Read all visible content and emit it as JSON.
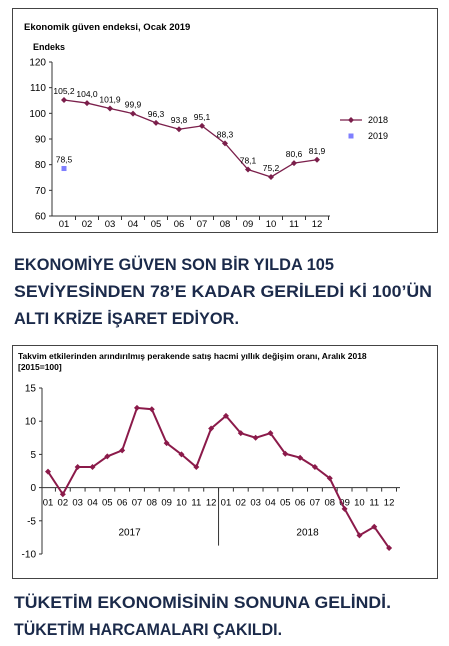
{
  "chart_data": [
    {
      "type": "line",
      "title": "Ekonomik güven endeksi, Ocak 2019",
      "y_label": "Endeks",
      "categories": [
        "01",
        "02",
        "03",
        "04",
        "05",
        "06",
        "07",
        "08",
        "09",
        "10",
        "11",
        "12"
      ],
      "series": [
        {
          "name": "2018",
          "color": "#7b1f4b",
          "marker": "diamond",
          "values": [
            105.2,
            104.0,
            101.9,
            99.9,
            96.3,
            93.8,
            95.1,
            88.3,
            78.1,
            75.2,
            80.6,
            81.9
          ],
          "value_labels": [
            "105,2",
            "104,0",
            "101,9",
            "99,9",
            "96,3",
            "93,8",
            "95,1",
            "88,3",
            "78,1",
            "75,2",
            "80,6",
            "81,9"
          ]
        },
        {
          "name": "2019",
          "color": "#7f7fff",
          "marker": "square",
          "values": [
            78.5,
            null,
            null,
            null,
            null,
            null,
            null,
            null,
            null,
            null,
            null,
            null
          ],
          "value_labels": [
            "78,5",
            null,
            null,
            null,
            null,
            null,
            null,
            null,
            null,
            null,
            null,
            null
          ]
        }
      ],
      "ylim": [
        60,
        120
      ],
      "yticks": [
        60,
        70,
        80,
        90,
        100,
        110,
        120
      ],
      "grid": false,
      "legend": "right"
    },
    {
      "type": "line",
      "title": "Takvim etkilerinden arındırılmış perakende satış hacmi yıllık değişim oranı, Aralık 2018",
      "subtitle": "[2015=100]",
      "categories": [
        "01",
        "02",
        "03",
        "04",
        "05",
        "06",
        "07",
        "08",
        "09",
        "10",
        "11",
        "12",
        "01",
        "02",
        "03",
        "04",
        "05",
        "06",
        "07",
        "08",
        "09",
        "10",
        "11",
        "12"
      ],
      "groups": [
        "2017",
        "2018"
      ],
      "series": [
        {
          "color": "#8b1a4a",
          "marker": "diamond",
          "values": [
            2.4,
            -1.0,
            3.1,
            3.1,
            4.7,
            5.6,
            12.0,
            11.8,
            6.7,
            5.0,
            3.1,
            8.9,
            10.8,
            8.2,
            7.5,
            8.2,
            5.1,
            4.5,
            3.1,
            1.4,
            -3.2,
            -7.2,
            -5.9,
            -9.1
          ]
        }
      ],
      "ylim": [
        -10,
        15
      ],
      "yticks": [
        -10,
        -5,
        0,
        5,
        10,
        15
      ],
      "grid": false
    }
  ],
  "captions": [
    {
      "lines": [
        "EKONOMİYE GÜVEN SON BİR YILDA 105",
        "SEVİYESİNDEN 78’E KADAR GERİLEDİ Kİ 100’ÜN",
        "ALTI KRİZE İŞARET EDİYOR."
      ]
    },
    {
      "lines": [
        "TÜKETİM EKONOMİSİNİN SONUNA GELİNDİ.",
        "TÜKETİM HARCAMALARI ÇAKILDI."
      ]
    }
  ]
}
